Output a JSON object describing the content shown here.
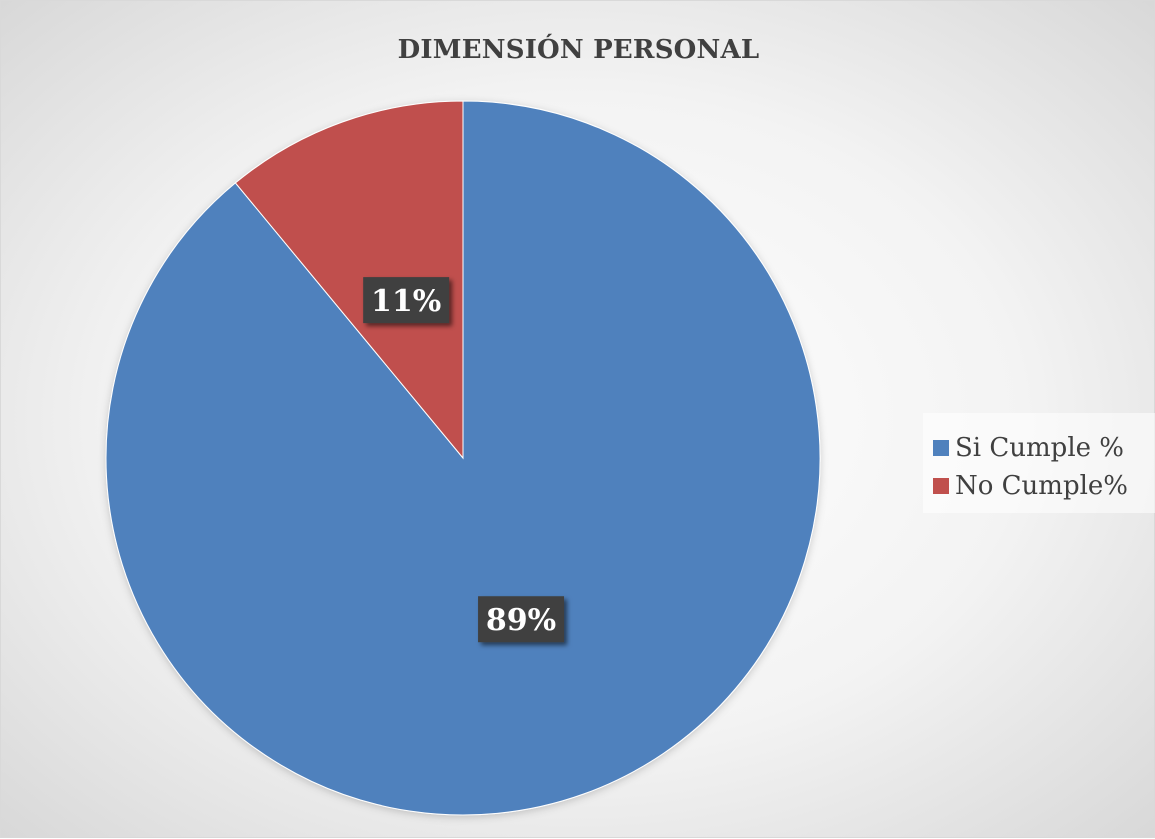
{
  "chart_data": {
    "type": "pie",
    "title": "DIMENSIÓN PERSONAL",
    "categories": [
      "Si Cumple %",
      "No Cumple%"
    ],
    "values": [
      89,
      11
    ],
    "data_labels": [
      "89%",
      "11%"
    ],
    "colors": [
      "#4F81BD",
      "#C0504D"
    ],
    "start_angle_deg": 0,
    "direction": "clockwise",
    "legend_position": "right"
  }
}
